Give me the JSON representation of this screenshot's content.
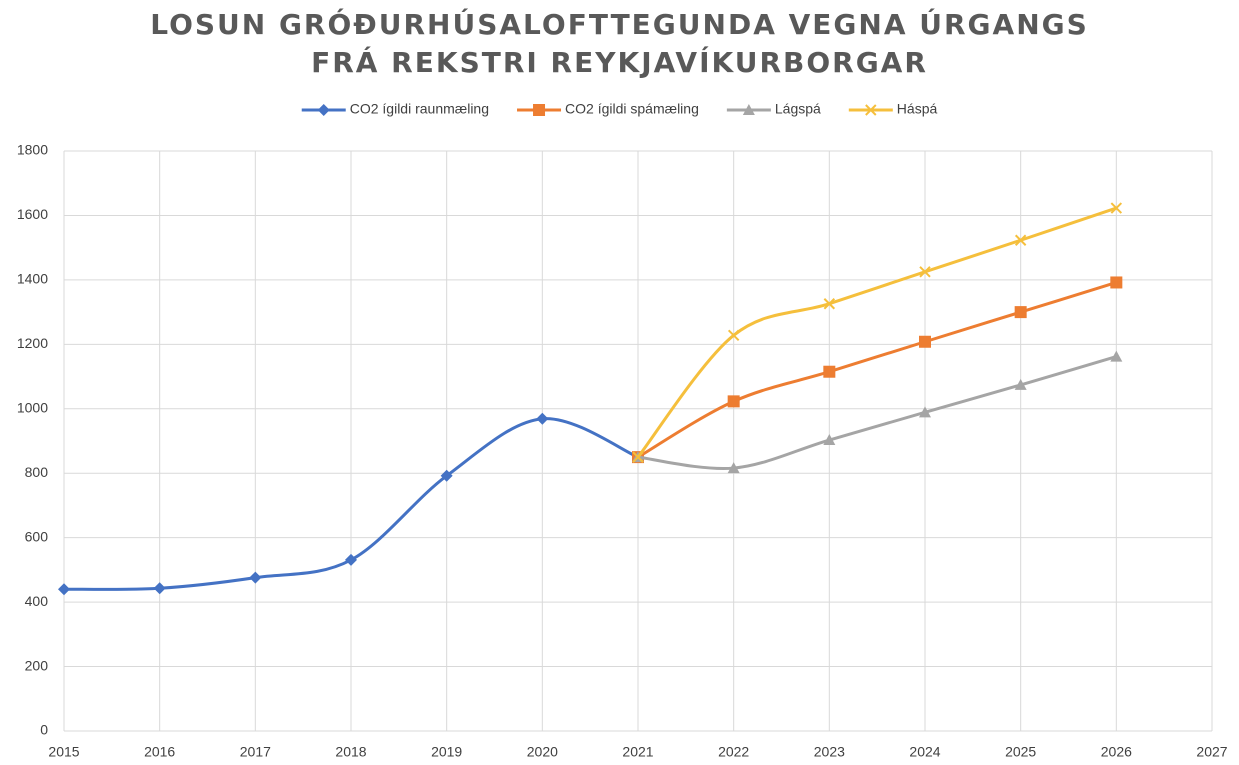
{
  "chart_data": {
    "type": "line",
    "title": "LOSUN GRÓÐURHÚSALOFTTEGUNDA VEGNA ÚRGANGS FRÁ REKSTRI REYKJAVÍKURBORGAR",
    "x": [
      2015,
      2016,
      2017,
      2018,
      2019,
      2020,
      2021,
      2022,
      2023,
      2024,
      2025,
      2026
    ],
    "series": [
      {
        "name": "CO2 ígildi raunmæling",
        "color": "#4472c4",
        "marker": "diamond",
        "values": [
          440,
          443,
          476,
          531,
          792,
          969,
          850,
          null,
          null,
          null,
          null,
          null
        ]
      },
      {
        "name": "CO2 ígildi spámæling",
        "color": "#ed7d31",
        "marker": "square",
        "values": [
          null,
          null,
          null,
          null,
          null,
          null,
          850,
          1023,
          1115,
          1208,
          1300,
          1392
        ]
      },
      {
        "name": "Lágspá",
        "color": "#a5a5a5",
        "marker": "triangle",
        "values": [
          null,
          null,
          null,
          null,
          null,
          null,
          850,
          816,
          903,
          989,
          1074,
          1162
        ]
      },
      {
        "name": "Háspá",
        "color": "#f5bf3c",
        "marker": "x",
        "values": [
          null,
          null,
          null,
          null,
          null,
          null,
          850,
          1228,
          1326,
          1425,
          1523,
          1623
        ]
      }
    ],
    "xlim": [
      2015,
      2027
    ],
    "xticks": [
      2015,
      2016,
      2017,
      2018,
      2019,
      2020,
      2021,
      2022,
      2023,
      2024,
      2025,
      2026,
      2027
    ],
    "ylim": [
      0,
      1800
    ],
    "yticks": [
      0,
      200,
      400,
      600,
      800,
      1000,
      1200,
      1400,
      1600,
      1800
    ],
    "grid": true,
    "smooth": true,
    "legend": "top"
  }
}
